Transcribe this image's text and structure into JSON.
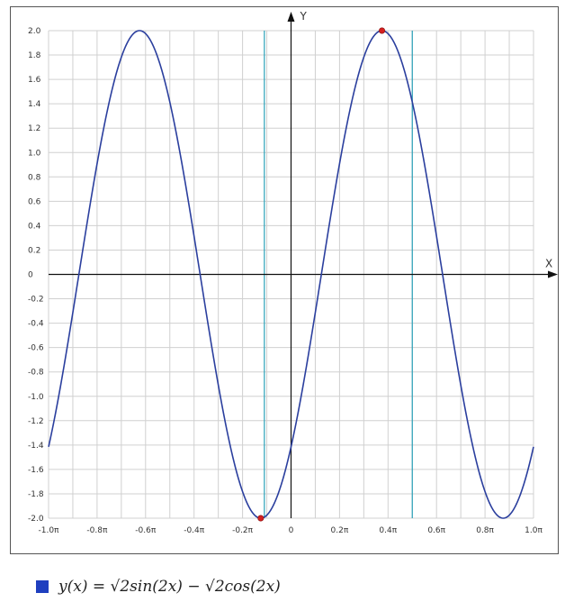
{
  "chart_data": {
    "type": "line",
    "title": "",
    "xlabel": "X",
    "ylabel": "Y",
    "xlim": [
      -1.0,
      1.0
    ],
    "ylim": [
      -2.0,
      2.0
    ],
    "x_unit": "π",
    "grid": true,
    "x_ticks": [
      -1.0,
      -0.9,
      -0.8,
      -0.7,
      -0.6,
      -0.5,
      -0.4,
      -0.3,
      -0.2,
      -0.1,
      0,
      0.1,
      0.2,
      0.3,
      0.4,
      0.5,
      0.6,
      0.7,
      0.8,
      0.9,
      1.0
    ],
    "x_tick_labels": [
      "-1.0π",
      "-0.8π",
      "-0.6π",
      "-0.4π",
      "-0.2π",
      "0",
      "0.2π",
      "0.4π",
      "0.6π",
      "0.8π",
      "1.0π"
    ],
    "x_tick_label_values": [
      -1.0,
      -0.8,
      -0.6,
      -0.4,
      -0.2,
      0,
      0.2,
      0.4,
      0.6,
      0.8,
      1.0
    ],
    "y_ticks": [
      2.0,
      1.8,
      1.6,
      1.4,
      1.2,
      1.0,
      0.8,
      0.6,
      0.4,
      0.2,
      0,
      -0.2,
      -0.4,
      -0.6,
      -0.8,
      -1.0,
      -1.2,
      -1.4,
      -1.6,
      -1.8,
      -2.0
    ],
    "y_tick_labels": [
      "2.0",
      "1.8",
      "1.6",
      "1.4",
      "1.2",
      "1.0",
      "0.8",
      "0.6",
      "0.4",
      "0.2",
      "0",
      "-0.2",
      "-0.4",
      "-0.6",
      "-0.8",
      "-1.0",
      "-1.2",
      "-1.4",
      "-1.6",
      "-1.8",
      "-2.0"
    ],
    "series": [
      {
        "name": "y(x) = √2sin(2x) − √2cos(2x)",
        "color": "#2b3f9e",
        "function": "sqrt(2)*sin(2*x) - sqrt(2)*cos(2*x)"
      }
    ],
    "vertical_lines": [
      {
        "x": -0.11,
        "color": "#28a0b8"
      },
      {
        "x": 0.5,
        "color": "#28a0b8"
      }
    ],
    "markers": [
      {
        "x": -0.125,
        "y": -2.0,
        "color": "#d42020"
      },
      {
        "x": 0.375,
        "y": 2.0,
        "color": "#d42020"
      }
    ],
    "legend_position": "bottom-left"
  },
  "legend": {
    "label": "y(x) = √2sin(2x) − √2cos(2x)",
    "swatch_color": "#1f3fbf"
  }
}
